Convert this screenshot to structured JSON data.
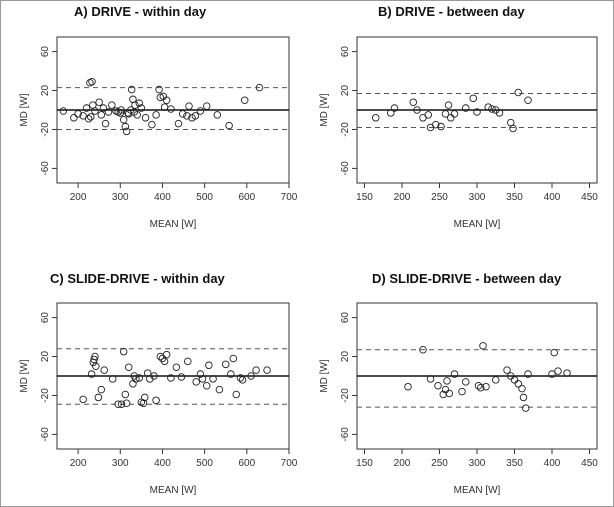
{
  "chart_data": [
    {
      "type": "scatter",
      "title": "A) DRIVE - within day",
      "xlabel": "MEAN [W]",
      "ylabel": "MD [W]",
      "xlim": [
        150,
        700
      ],
      "ylim": [
        -75,
        75
      ],
      "xticks": [
        200,
        300,
        400,
        500,
        600,
        700
      ],
      "yticks": [
        -60,
        -20,
        20,
        60
      ],
      "bias": 0,
      "loa": [
        23,
        -20
      ],
      "points": [
        [
          165,
          -1
        ],
        [
          190,
          -8
        ],
        [
          200,
          -4
        ],
        [
          212,
          -6
        ],
        [
          220,
          2
        ],
        [
          225,
          -9
        ],
        [
          228,
          28
        ],
        [
          230,
          -7
        ],
        [
          233,
          29
        ],
        [
          235,
          5
        ],
        [
          240,
          -1
        ],
        [
          250,
          8
        ],
        [
          255,
          -5
        ],
        [
          260,
          2
        ],
        [
          265,
          -14
        ],
        [
          272,
          -2
        ],
        [
          280,
          5
        ],
        [
          290,
          -1
        ],
        [
          295,
          -2
        ],
        [
          300,
          -3
        ],
        [
          302,
          0
        ],
        [
          308,
          -10
        ],
        [
          312,
          -17
        ],
        [
          315,
          -22
        ],
        [
          318,
          -3
        ],
        [
          320,
          -4
        ],
        [
          325,
          0
        ],
        [
          327,
          21
        ],
        [
          330,
          11
        ],
        [
          333,
          -2
        ],
        [
          335,
          5
        ],
        [
          340,
          -5
        ],
        [
          345,
          7
        ],
        [
          350,
          2
        ],
        [
          360,
          -8
        ],
        [
          375,
          -15
        ],
        [
          385,
          -5
        ],
        [
          392,
          21
        ],
        [
          395,
          13
        ],
        [
          402,
          14
        ],
        [
          405,
          3
        ],
        [
          410,
          10
        ],
        [
          420,
          1
        ],
        [
          438,
          -14
        ],
        [
          448,
          -4
        ],
        [
          458,
          -6
        ],
        [
          463,
          4
        ],
        [
          470,
          -8
        ],
        [
          478,
          -6
        ],
        [
          490,
          -1
        ],
        [
          505,
          4
        ],
        [
          530,
          -5
        ],
        [
          558,
          -16
        ],
        [
          595,
          10
        ],
        [
          630,
          23
        ]
      ],
      "grid": false
    },
    {
      "type": "scatter",
      "title": "B) DRIVE - between day",
      "xlabel": "MEAN [W]",
      "ylabel": "MD [W]",
      "xlim": [
        140,
        460
      ],
      "ylim": [
        -75,
        75
      ],
      "xticks": [
        150,
        200,
        250,
        300,
        350,
        400,
        450
      ],
      "yticks": [
        -60,
        -20,
        20,
        60
      ],
      "bias": 0,
      "loa": [
        17,
        -18
      ],
      "points": [
        [
          165,
          -8
        ],
        [
          185,
          -3
        ],
        [
          190,
          2
        ],
        [
          215,
          8
        ],
        [
          220,
          0
        ],
        [
          228,
          -8
        ],
        [
          235,
          -5
        ],
        [
          238,
          -18
        ],
        [
          245,
          -15
        ],
        [
          252,
          -17
        ],
        [
          258,
          -4
        ],
        [
          262,
          5
        ],
        [
          265,
          -8
        ],
        [
          270,
          -4
        ],
        [
          285,
          2
        ],
        [
          295,
          12
        ],
        [
          300,
          -2
        ],
        [
          315,
          3
        ],
        [
          320,
          1
        ],
        [
          325,
          0
        ],
        [
          330,
          -3
        ],
        [
          345,
          -13
        ],
        [
          348,
          -19
        ],
        [
          355,
          18
        ],
        [
          368,
          10
        ]
      ],
      "grid": false
    },
    {
      "type": "scatter",
      "title": "C) SLIDE-DRIVE - within day",
      "xlabel": "MEAN [W]",
      "ylabel": "MD [W]",
      "xlim": [
        150,
        700
      ],
      "ylim": [
        -75,
        75
      ],
      "xticks": [
        200,
        300,
        400,
        500,
        600,
        700
      ],
      "yticks": [
        -60,
        -20,
        20,
        60
      ],
      "bias": 0,
      "loa": [
        28,
        -29
      ],
      "points": [
        [
          212,
          -24
        ],
        [
          232,
          2
        ],
        [
          236,
          14
        ],
        [
          238,
          17
        ],
        [
          240,
          20
        ],
        [
          242,
          10
        ],
        [
          248,
          -22
        ],
        [
          255,
          -14
        ],
        [
          262,
          6
        ],
        [
          282,
          -3
        ],
        [
          295,
          -29
        ],
        [
          303,
          -29
        ],
        [
          308,
          25
        ],
        [
          312,
          -19
        ],
        [
          315,
          -28
        ],
        [
          320,
          9
        ],
        [
          330,
          -8
        ],
        [
          333,
          0
        ],
        [
          337,
          -3
        ],
        [
          345,
          -2
        ],
        [
          350,
          -27
        ],
        [
          355,
          -28
        ],
        [
          358,
          -22
        ],
        [
          365,
          3
        ],
        [
          370,
          -3
        ],
        [
          380,
          0
        ],
        [
          385,
          -25
        ],
        [
          395,
          20
        ],
        [
          400,
          18
        ],
        [
          405,
          15
        ],
        [
          410,
          22
        ],
        [
          420,
          -2
        ],
        [
          433,
          9
        ],
        [
          445,
          -1
        ],
        [
          460,
          15
        ],
        [
          480,
          -6
        ],
        [
          490,
          2
        ],
        [
          495,
          -3
        ],
        [
          505,
          -10
        ],
        [
          510,
          11
        ],
        [
          520,
          -3
        ],
        [
          535,
          -14
        ],
        [
          550,
          12
        ],
        [
          562,
          2
        ],
        [
          568,
          18
        ],
        [
          575,
          -19
        ],
        [
          585,
          -2
        ],
        [
          590,
          -4
        ],
        [
          610,
          0
        ],
        [
          622,
          6
        ],
        [
          648,
          6
        ]
      ],
      "grid": false
    },
    {
      "type": "scatter",
      "title": "D) SLIDE-DRIVE - between day",
      "xlabel": "MEAN [W]",
      "ylabel": "MD [W]",
      "xlim": [
        140,
        460
      ],
      "ylim": [
        -75,
        75
      ],
      "xticks": [
        150,
        200,
        250,
        300,
        350,
        400,
        450
      ],
      "yticks": [
        -60,
        -20,
        20,
        60
      ],
      "bias": 0,
      "loa": [
        27,
        -32
      ],
      "points": [
        [
          208,
          -11
        ],
        [
          228,
          27
        ],
        [
          238,
          -3
        ],
        [
          248,
          -10
        ],
        [
          255,
          -19
        ],
        [
          258,
          -14
        ],
        [
          260,
          -5
        ],
        [
          263,
          -18
        ],
        [
          270,
          2
        ],
        [
          280,
          -16
        ],
        [
          285,
          -6
        ],
        [
          302,
          -10
        ],
        [
          305,
          -12
        ],
        [
          308,
          31
        ],
        [
          312,
          -11
        ],
        [
          325,
          -4
        ],
        [
          340,
          6
        ],
        [
          345,
          0
        ],
        [
          350,
          -4
        ],
        [
          355,
          -8
        ],
        [
          360,
          -13
        ],
        [
          362,
          -22
        ],
        [
          365,
          -33
        ],
        [
          368,
          2
        ],
        [
          400,
          2
        ],
        [
          403,
          24
        ],
        [
          408,
          5
        ],
        [
          420,
          3
        ]
      ],
      "grid": false
    }
  ]
}
